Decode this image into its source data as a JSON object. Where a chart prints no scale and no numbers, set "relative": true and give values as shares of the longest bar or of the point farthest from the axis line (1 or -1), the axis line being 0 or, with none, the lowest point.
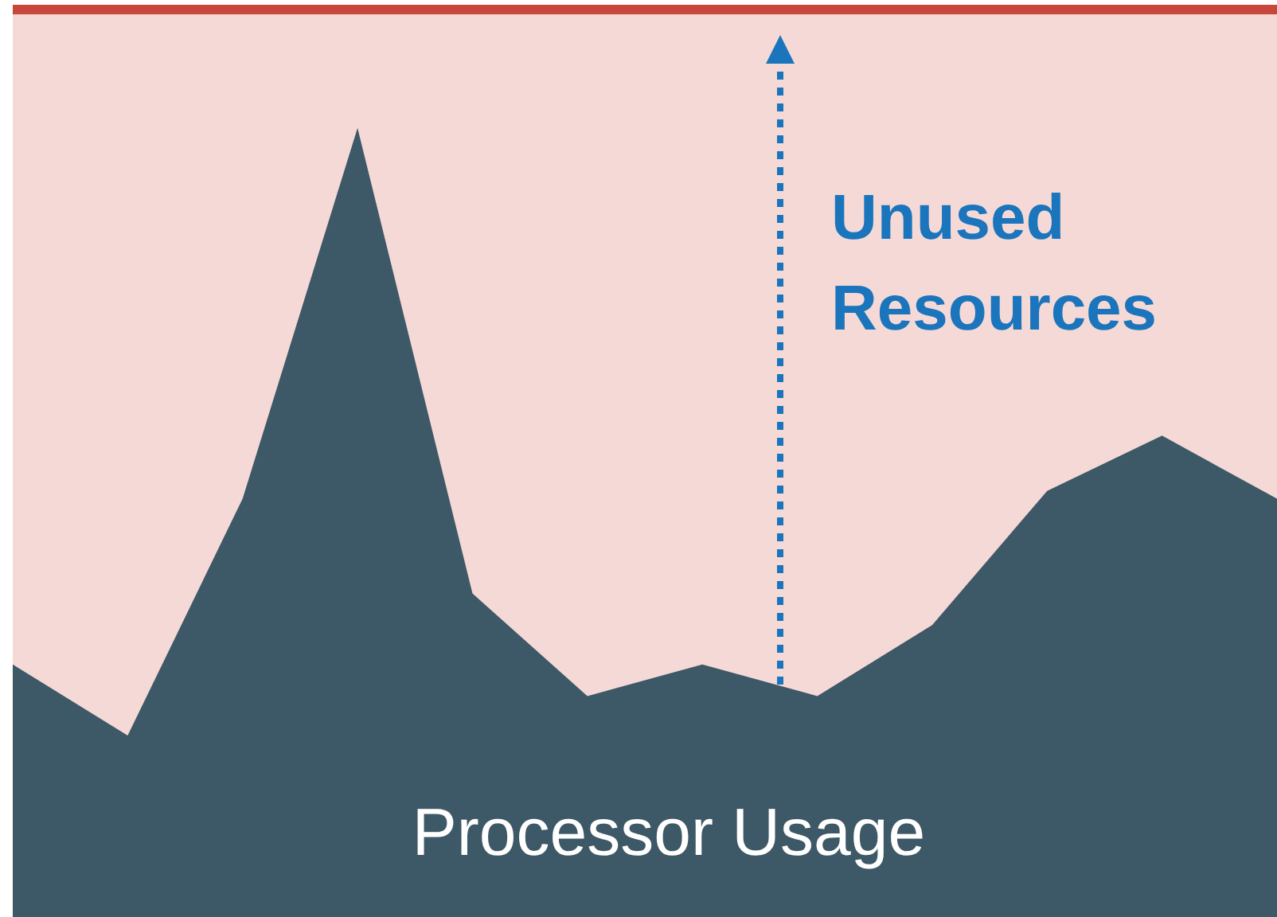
{
  "chart_data": {
    "type": "area",
    "relative": true,
    "categories": [
      null,
      null,
      null,
      null,
      null,
      null,
      null,
      null,
      null,
      null,
      null,
      null
    ],
    "series": [
      {
        "color": "#3d5866",
        "values": [
          0.32,
          0.23,
          0.53,
          1,
          0.41,
          0.28,
          0.32,
          0.28,
          0.37,
          0.54,
          0.61,
          0.53
        ]
      }
    ],
    "ref_lines": [
      {
        "axis": "y",
        "value": 1.15,
        "color": "#c8463a"
      }
    ],
    "annotations": [
      "Unused Resources",
      "Processor Usage"
    ]
  }
}
